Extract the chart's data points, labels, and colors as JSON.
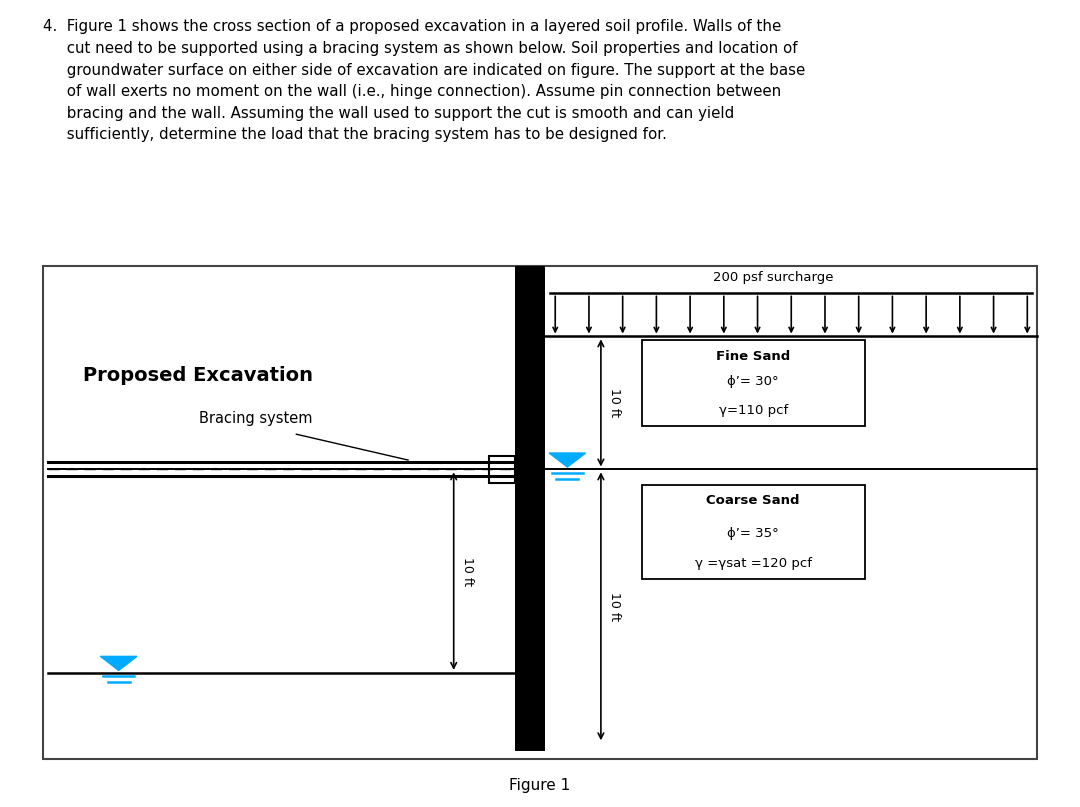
{
  "title_text": "4.  Figure 1 shows the cross section of a proposed excavation in a layered soil profile. Walls of the\n     cut need to be supported using a bracing system as shown below. Soil properties and location of\n     groundwater surface on either side of excavation are indicated on figure. The support at the base\n     of wall exerts no moment on the wall (i.e., hinge connection). Assume pin connection between\n     bracing and the wall. Assuming the wall used to support the cut is smooth and can yield\n     sufficiently, determine the load that the bracing system has to be designed for.",
  "figure_caption": "Figure 1",
  "surcharge_label": "200 psf surcharge",
  "proposed_excavation_label": "Proposed Excavation",
  "bracing_system_label": "Bracing system",
  "bg_color": "#ffffff",
  "water_color": "#00aaff"
}
